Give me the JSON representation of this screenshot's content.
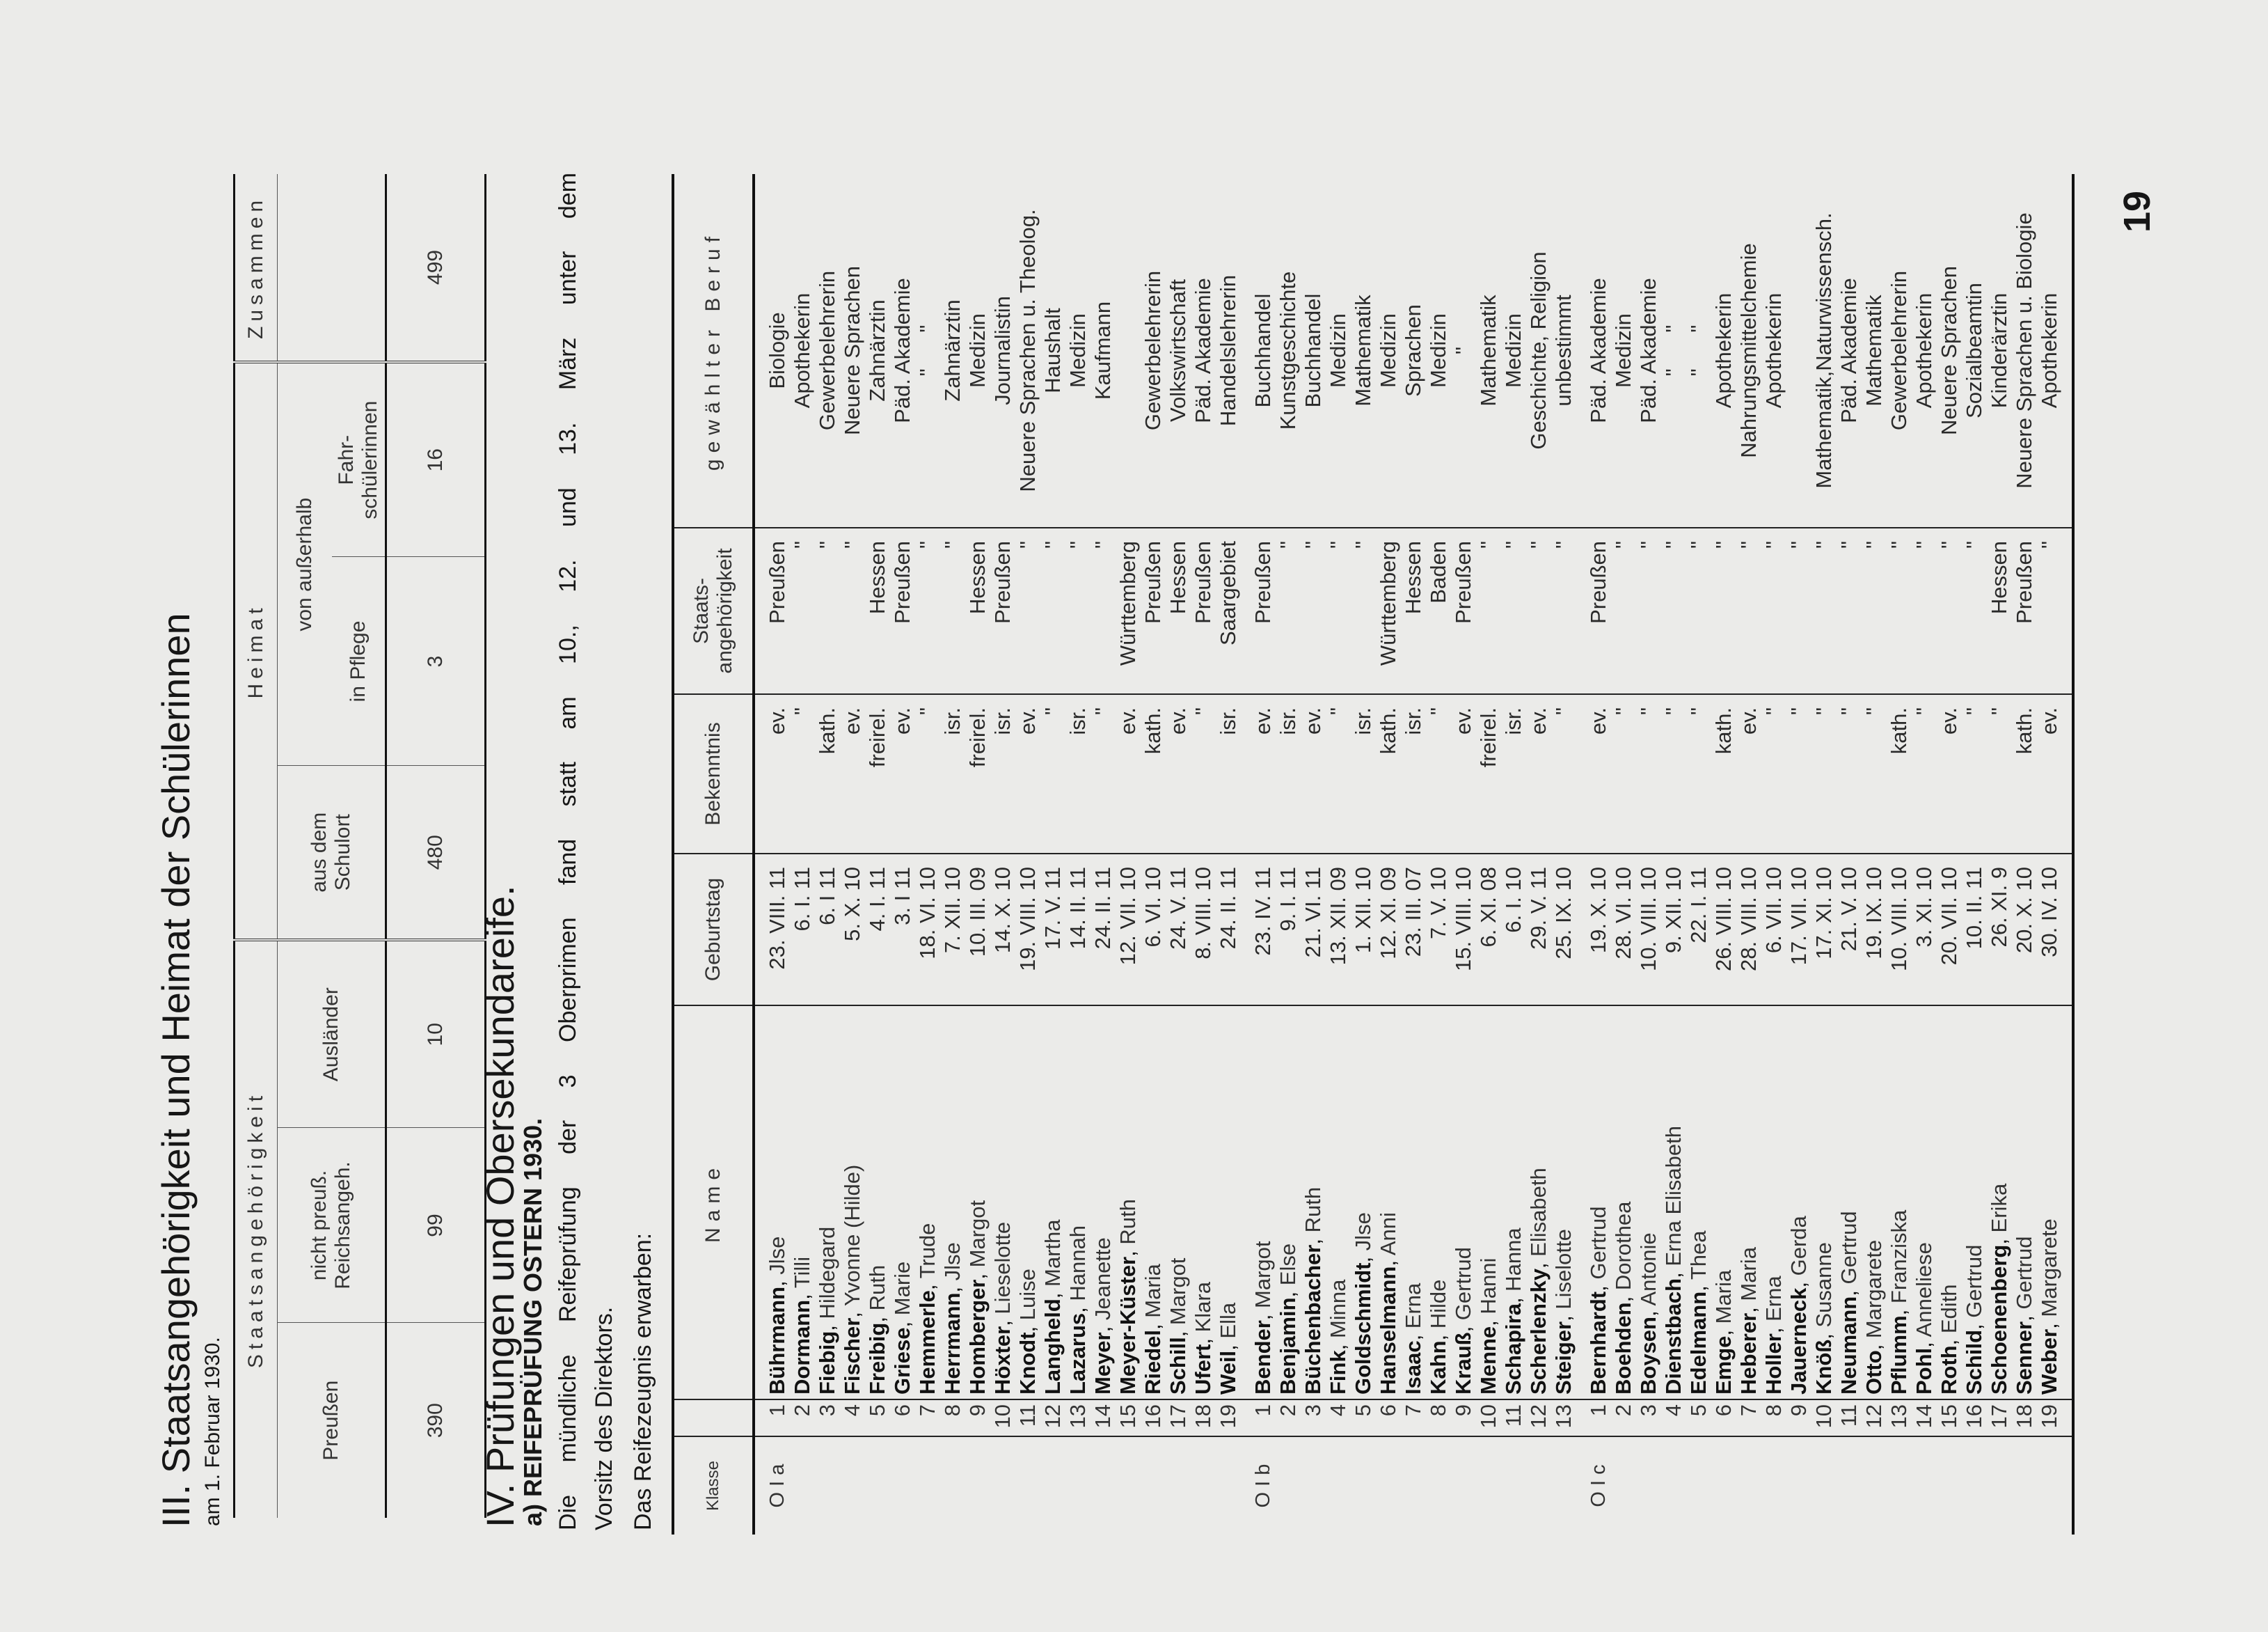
{
  "section3": {
    "title": "III. Staatsangehörigkeit und Heimat der Schülerinnen",
    "subtitle": "am 1. Februar 1930.",
    "table": {
      "group_staats": "Staatsangehörigkeit",
      "group_heimat": "Heimat",
      "group_total": "Zusammen",
      "col_preussen": "Preußen",
      "col_nicht_preuss": "nicht preuß.\nReichsangeh.",
      "col_auslaender": "Ausländer",
      "col_schulort": "aus dem\nSchulort",
      "col_ausserhalb": "von außerhalb",
      "col_pflege": "in Pflege",
      "col_fahr": "Fahr-\nschülerinnen",
      "values": {
        "preussen": "390",
        "nicht_preuss": "99",
        "auslaender": "10",
        "schulort": "480",
        "pflege": "3",
        "fahr": "16",
        "total": "499"
      }
    }
  },
  "section4": {
    "title": "IV. Prüfungen und Obersekundareife.",
    "subheading": "a) REIFEPRÜFUNG OSTERN 1930.",
    "para1_line1": "Die mündliche Reifeprüfung der 3 Oberprimen fand statt am 10., 12. und 13. März unter dem",
    "para1_line2": "Vorsitz des Direktors.",
    "para2": "Das Reifezeugnis erwarben:"
  },
  "table": {
    "headers": {
      "klasse": "Klasse",
      "nr": "",
      "name": "Name",
      "geburtstag": "Geburtstag",
      "bekenntnis": "Bekenntnis",
      "staats": "Staats-\nangehörigkeit",
      "beruf": "gewählter Beruf"
    },
    "groups": [
      {
        "klasse": "O I a",
        "rows": [
          [
            "1",
            "Bührmann",
            "Jlse",
            "23. VIII. 11",
            "ev.",
            "Preußen",
            "Biologie"
          ],
          [
            "2",
            "Dormann",
            "Tilli",
            "6. I. 11",
            "\"",
            "\"",
            "Apothekerin"
          ],
          [
            "3",
            "Fiebig",
            "Hildegard",
            "6. I 11",
            "kath.",
            "\"",
            "Gewerbelehrerin"
          ],
          [
            "4",
            "Fischer",
            "Yvonne (Hilde)",
            "5. X. 10",
            "ev.",
            "\"",
            "Neuere Sprachen"
          ],
          [
            "5",
            "Freibig",
            "Ruth",
            "4. I. 11",
            "freirel.",
            "Hessen",
            "Zahnärztin"
          ],
          [
            "6",
            "Griese",
            "Marie",
            "3. I 11",
            "ev.",
            "Preußen",
            "Päd. Akademie"
          ],
          [
            "7",
            "Hemmerle",
            "Trude",
            "18. VI. 10",
            "\"",
            "\"",
            "\"      \""
          ],
          [
            "8",
            "Herrmann",
            "Jlse",
            "7. XII. 10",
            "isr.",
            "\"",
            "Zahnärztin"
          ],
          [
            "9",
            "Homberger",
            "Margot",
            "10. III. 09",
            "freirel.",
            "Hessen",
            "Medizin"
          ],
          [
            "10",
            "Höxter",
            "Lieselotte",
            "14. X. 10",
            "isr.",
            "Preußen",
            "Journalistin"
          ],
          [
            "11",
            "Knodt",
            "Luise",
            "19. VIII. 10",
            "ev.",
            "\"",
            "Neuere Sprachen u. Theolog."
          ],
          [
            "12",
            "Langheld",
            "Martha",
            "17. V. 11",
            "\"",
            "\"",
            "Haushalt"
          ],
          [
            "13",
            "Lazarus",
            "Hannah",
            "14. II. 11",
            "isr.",
            "\"",
            "Medizin"
          ],
          [
            "14",
            "Meyer",
            "Jeanette",
            "24. II. 11",
            "\"",
            "\"",
            "Kaufmann"
          ],
          [
            "15",
            "Meyer-Küster",
            "Ruth",
            "12. VII. 10",
            "ev.",
            "Württemberg",
            ""
          ],
          [
            "16",
            "Riedel",
            "Maria",
            "6. VI. 10",
            "kath.",
            "Preußen",
            "Gewerbelehrerin"
          ],
          [
            "17",
            "Schill",
            "Margot",
            "24. V. 11",
            "ev.",
            "Hessen",
            "Volkswirtschaft"
          ],
          [
            "18",
            "Ufert",
            "Klara",
            "8. VIII. 10",
            "\"",
            "Preußen",
            "Päd. Akademie"
          ],
          [
            "19",
            "Weil",
            "Ella",
            "24. II. 11",
            "isr.",
            "Saargebiet",
            "Handelslehrerin"
          ]
        ]
      },
      {
        "klasse": "O I b",
        "rows": [
          [
            "1",
            "Bender",
            "Margot",
            "23. IV. 11",
            "ev.",
            "Preußen",
            "Buchhandel"
          ],
          [
            "2",
            "Benjamin",
            "Else",
            "9. I. 11",
            "isr.",
            "\"",
            "Kunstgeschichte"
          ],
          [
            "3",
            "Büchenbacher",
            "Ruth",
            "21. VI. 11",
            "ev.",
            "\"",
            "Buchhandel"
          ],
          [
            "4",
            "Fink",
            "Minna",
            "13. XII. 09",
            "\"",
            "\"",
            "Medizin"
          ],
          [
            "5",
            "Goldschmidt",
            "Jlse",
            "1. XII. 10",
            "isr.",
            "\"",
            "Mathematik"
          ],
          [
            "6",
            "Hanselmann",
            "Anni",
            "12. XI. 09",
            "kath.",
            "Württemberg",
            "Medizin"
          ],
          [
            "7",
            "Isaac",
            "Erna",
            "23. III. 07",
            "isr.",
            "Hessen",
            "Sprachen"
          ],
          [
            "8",
            "Kahn",
            "Hilde",
            "7. V. 10",
            "\"",
            "Baden",
            "Medizin"
          ],
          [
            "9",
            "Krauß",
            "Gertrud",
            "15. VIII. 10",
            "ev.",
            "Preußen",
            "\""
          ],
          [
            "10",
            "Menne",
            "Hanni",
            "6. XI. 08",
            "freirel.",
            "\"",
            "Mathematik"
          ],
          [
            "11",
            "Schapira",
            "Hanna",
            "6. I. 10",
            "isr.",
            "\"",
            "Medizin"
          ],
          [
            "12",
            "Scherlenzky",
            "Elisabeth",
            "29. V. 11",
            "ev.",
            "\"",
            "Geschichte, Religion"
          ],
          [
            "13",
            "Steiger",
            "Liselotte",
            "25. IX. 10",
            "\"",
            "\"",
            "unbestimmt"
          ]
        ]
      },
      {
        "klasse": "O I c",
        "rows": [
          [
            "1",
            "Bernhardt",
            "Gertrud",
            "19. X. 10",
            "ev.",
            "Preußen",
            "Päd. Akademie"
          ],
          [
            "2",
            "Boehden",
            "Dorothea",
            "28. VI. 10",
            "\"",
            "\"",
            "Medizin"
          ],
          [
            "3",
            "Boysen",
            "Antonie",
            "10. VIII. 10",
            "\"",
            "\"",
            "Päd. Akademie"
          ],
          [
            "4",
            "Dienstbach",
            "Erna Elisabeth",
            "9. XII. 10",
            "\"",
            "\"",
            "\"      \""
          ],
          [
            "5",
            "Edelmann",
            "Thea",
            "22. I. 11",
            "\"",
            "\"",
            "\"      \""
          ],
          [
            "6",
            "Emge",
            "Maria",
            "26. VIII. 10",
            "kath.",
            "\"",
            "Apothekerin"
          ],
          [
            "7",
            "Heberer",
            "Maria",
            "28. VIII. 10",
            "ev.",
            "\"",
            "Nahrungsmittelchemie"
          ],
          [
            "8",
            "Holler",
            "Erna",
            "6. VII. 10",
            "\"",
            "\"",
            "Apothekerin"
          ],
          [
            "9",
            "Jauerneck",
            "Gerda",
            "17. VII. 10",
            "\"",
            "\"",
            ""
          ],
          [
            "10",
            "Knöß",
            "Susanne",
            "17. XI. 10",
            "\"",
            "\"",
            "Mathematik,Naturwissensch."
          ],
          [
            "11",
            "Neumann",
            "Gertrud",
            "21. V. 10",
            "\"",
            "\"",
            "Päd. Akademie"
          ],
          [
            "12",
            "Otto",
            "Margarete",
            "19. IX. 10",
            "\"",
            "\"",
            "Mathematik"
          ],
          [
            "13",
            "Pflumm",
            "Franziska",
            "10. VIII. 10",
            "kath.",
            "\"",
            "Gewerbelehrerin"
          ],
          [
            "14",
            "Pohl",
            "Anneliese",
            "3. XI. 10",
            "\"",
            "\"",
            "Apothekerin"
          ],
          [
            "15",
            "Roth",
            "Edith",
            "20. VII. 10",
            "ev.",
            "\"",
            "Neuere Sprachen"
          ],
          [
            "16",
            "Schild",
            "Gertrud",
            "10. II. 11",
            "\"",
            "\"",
            "Sozialbeamtin"
          ],
          [
            "17",
            "Schoenenberg",
            "Erika",
            "26. XI. 9",
            "\"",
            "Hessen",
            "Kinderärztin"
          ],
          [
            "18",
            "Senner",
            "Gertrud",
            "20. X. 10",
            "kath.",
            "Preußen",
            "Neuere Sprachen u. Biologie"
          ],
          [
            "19",
            "Weber",
            "Margarete",
            "30. IV. 10",
            "ev.",
            "\"",
            "Apothekerin"
          ]
        ]
      }
    ]
  },
  "page_number": "19"
}
